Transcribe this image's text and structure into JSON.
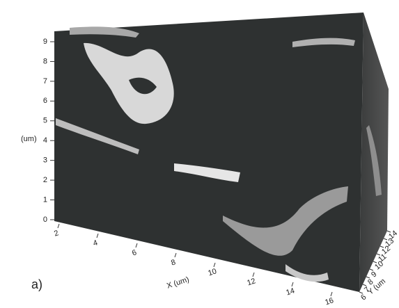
{
  "panel_label": "a)",
  "z_axis": {
    "title": "(um)",
    "ticks": [
      0,
      1,
      2,
      3,
      4,
      5,
      6,
      7,
      8,
      9
    ]
  },
  "x_axis": {
    "title": "X (um)",
    "ticks": [
      2,
      4,
      6,
      8,
      10,
      12,
      14,
      16
    ]
  },
  "y_axis": {
    "title": "Y (um",
    "ticks": [
      6,
      7,
      8,
      9,
      10,
      11,
      12,
      13,
      14
    ]
  }
}
